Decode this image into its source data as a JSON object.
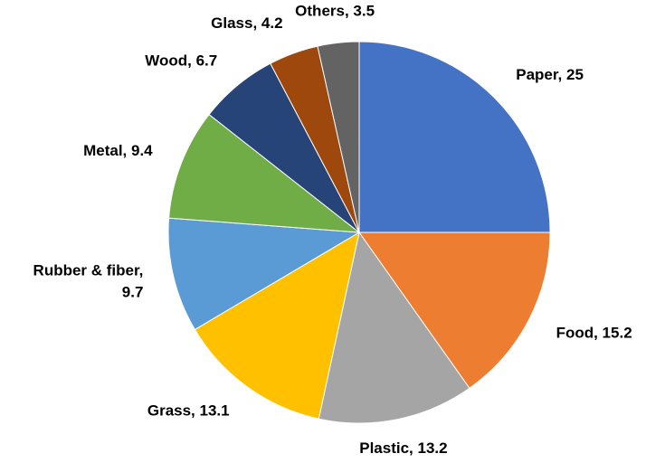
{
  "chart_data": {
    "type": "pie",
    "values": [
      25,
      15.2,
      13.2,
      13.1,
      9.7,
      9.4,
      6.7,
      4.2,
      3.5
    ],
    "value_labels": [
      "Paper, 25",
      "Food, 15.2",
      "Plastic, 13.2",
      "Grass, 13.1",
      "Rubber & fiber,\n9.7",
      "Metal, 9.4",
      "Wood, 6.7",
      "Glass, 4.2",
      "Others, 3.5"
    ],
    "colors": [
      "#4472c4",
      "#ed7d31",
      "#a5a5a5",
      "#ffc000",
      "#5b9bd5",
      "#70ad47",
      "#264478",
      "#9e480e",
      "#636363"
    ]
  }
}
